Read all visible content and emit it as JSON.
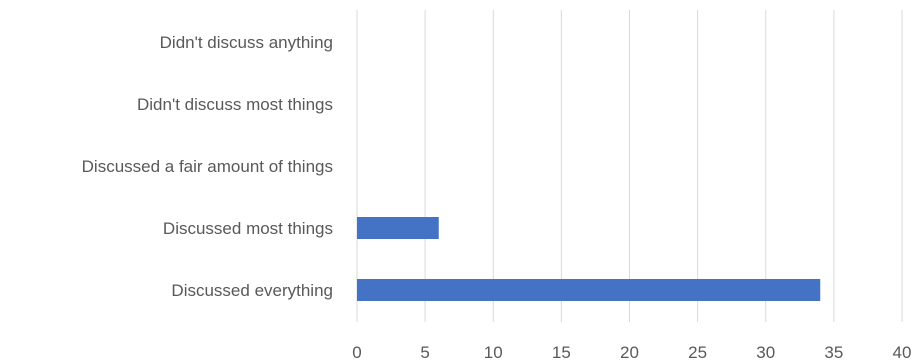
{
  "chart_data": {
    "type": "bar",
    "orientation": "horizontal",
    "title": "",
    "xlabel": "",
    "ylabel": "",
    "categories": [
      "Didn't discuss anything",
      "Didn't discuss most things",
      "Discussed a fair amount of things",
      "Discussed most things",
      "Discussed everything"
    ],
    "values": [
      0,
      0,
      0,
      6,
      34
    ],
    "xlim": [
      0,
      40
    ],
    "xticks": [
      "0",
      "5",
      "10",
      "15",
      "20",
      "25",
      "30",
      "35",
      "40"
    ],
    "bar_color": "#4472C4",
    "grid": "vertical",
    "legend": "none"
  }
}
